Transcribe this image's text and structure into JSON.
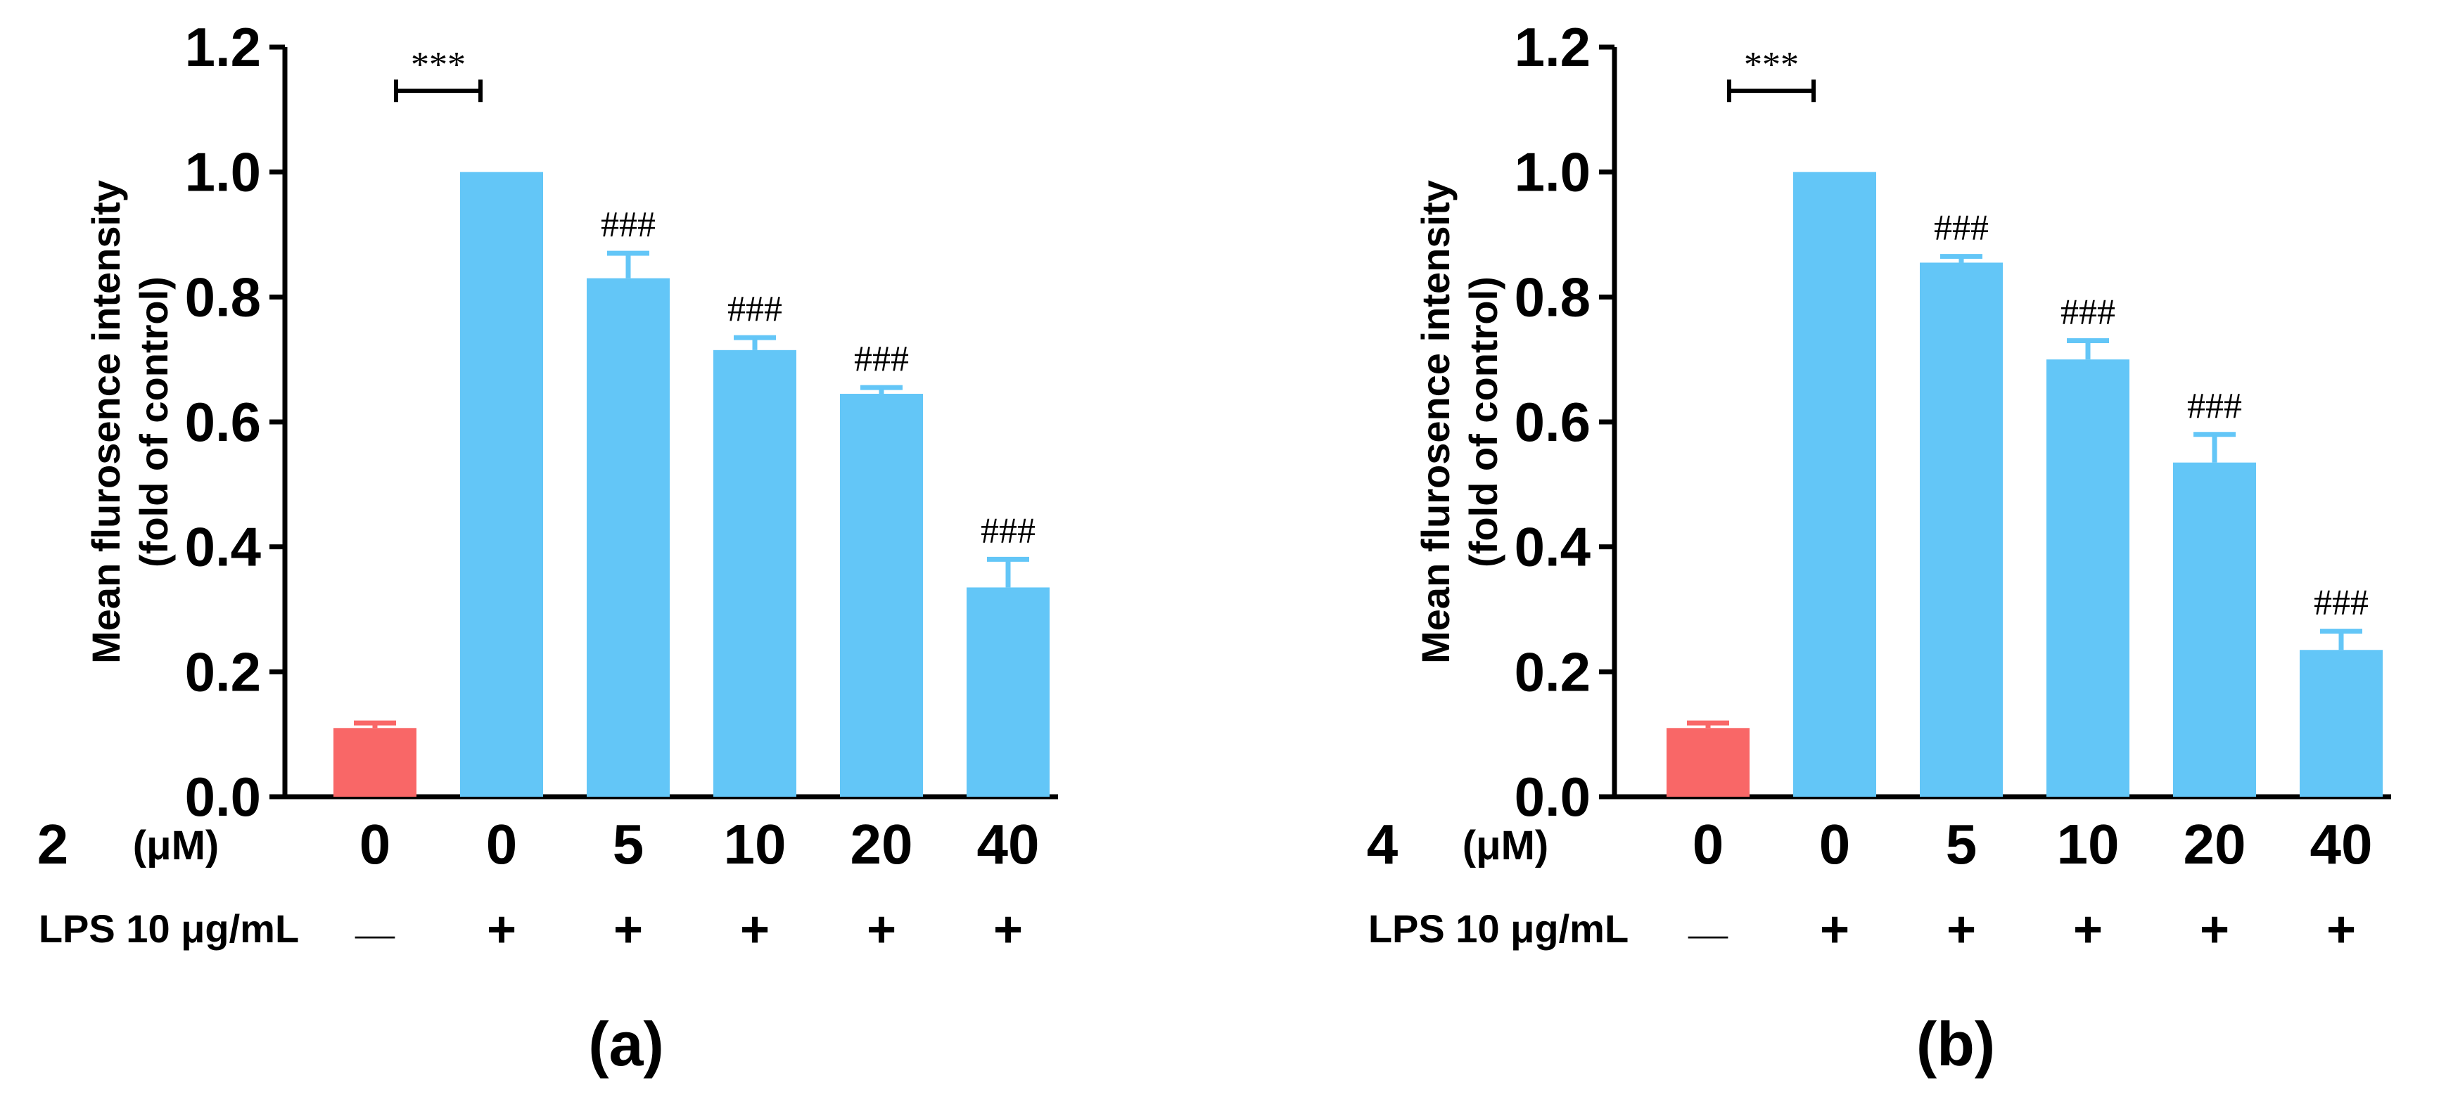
{
  "chart_data": [
    {
      "type": "bar",
      "panel_label": "(a)",
      "compound": "2",
      "unit": "(μM)",
      "lps_label": "LPS 10 μg/mL",
      "ylabel_line1": "Mean flurosence intensity",
      "ylabel_line2": "(fold of control)",
      "ylim": [
        0,
        1.2
      ],
      "yticks": [
        "0.0",
        "0.2",
        "0.4",
        "0.6",
        "0.8",
        "1.0",
        "1.2"
      ],
      "categories": [
        "0",
        "0",
        "5",
        "10",
        "20",
        "40"
      ],
      "lps": [
        "—",
        "+",
        "+",
        "+",
        "+",
        "+"
      ],
      "values": [
        0.11,
        1.0,
        0.83,
        0.715,
        0.645,
        0.335
      ],
      "errors": [
        0.008,
        0,
        0.04,
        0.02,
        0.01,
        0.045
      ],
      "colors": [
        "#f96767",
        "#63c6f7",
        "#63c6f7",
        "#63c6f7",
        "#63c6f7",
        "#63c6f7"
      ],
      "annotations": [
        "",
        "",
        "###",
        "###",
        "###",
        "###"
      ],
      "bracket_label": "***"
    },
    {
      "type": "bar",
      "panel_label": "(b)",
      "compound": "4",
      "unit": "(μM)",
      "lps_label": "LPS 10 μg/mL",
      "ylabel_line1": "Mean flurosence intensity",
      "ylabel_line2": "(fold of control)",
      "ylim": [
        0,
        1.2
      ],
      "yticks": [
        "0.0",
        "0.2",
        "0.4",
        "0.6",
        "0.8",
        "1.0",
        "1.2"
      ],
      "categories": [
        "0",
        "0",
        "5",
        "10",
        "20",
        "40"
      ],
      "lps": [
        "—",
        "+",
        "+",
        "+",
        "+",
        "+"
      ],
      "values": [
        0.11,
        1.0,
        0.855,
        0.7,
        0.535,
        0.235
      ],
      "errors": [
        0.008,
        0,
        0.01,
        0.03,
        0.045,
        0.03
      ],
      "colors": [
        "#f96767",
        "#63c6f7",
        "#63c6f7",
        "#63c6f7",
        "#63c6f7",
        "#63c6f7"
      ],
      "annotations": [
        "",
        "",
        "###",
        "###",
        "###",
        "###"
      ],
      "bracket_label": "***"
    }
  ]
}
